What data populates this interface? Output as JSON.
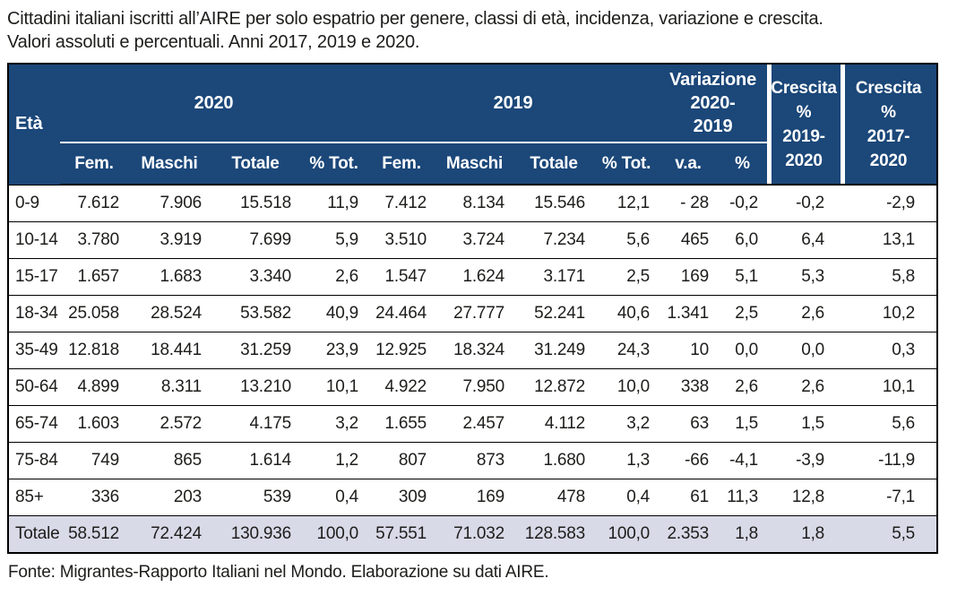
{
  "title": {
    "line1": "Cittadini italiani iscritti all’AIRE per solo espatrio per genere, classi di età, incidenza, variazione e crescita.",
    "line2": "Valori assoluti e percentuali. Anni 2017, 2019 e 2020."
  },
  "colors": {
    "header_bg": "#1b4779",
    "header_text": "#ffffff",
    "totale_row_bg": "#d9dae8",
    "border": "#000000"
  },
  "table": {
    "eta_header": "Età",
    "groups": {
      "y2020": "2020",
      "y2019": "2019",
      "variazione": "Variazione\n2020-\n2019"
    },
    "crescita_headers": {
      "c2019_2020": "Crescita\n%\n2019-\n2020",
      "c2017_2020": "Crescita\n%\n2017-\n2020"
    },
    "sub_headers": [
      "Fem.",
      "Maschi",
      "Totale",
      "% Tot.",
      "Fem.",
      "Maschi",
      "Totale",
      "% Tot.",
      "v.a.",
      "%"
    ],
    "rows": [
      {
        "label": "0-9",
        "values": [
          "7.612",
          "7.906",
          "15.518",
          "11,9",
          "7.412",
          "8.134",
          "15.546",
          "12,1",
          "- 28",
          "-0,2",
          "-0,2",
          "-2,9"
        ]
      },
      {
        "label": "10-14",
        "values": [
          "3.780",
          "3.919",
          "7.699",
          "5,9",
          "3.510",
          "3.724",
          "7.234",
          "5,6",
          "465",
          "6,0",
          "6,4",
          "13,1"
        ]
      },
      {
        "label": "15-17",
        "values": [
          "1.657",
          "1.683",
          "3.340",
          "2,6",
          "1.547",
          "1.624",
          "3.171",
          "2,5",
          "169",
          "5,1",
          "5,3",
          "5,8"
        ]
      },
      {
        "label": "18-34",
        "values": [
          "25.058",
          "28.524",
          "53.582",
          "40,9",
          "24.464",
          "27.777",
          "52.241",
          "40,6",
          "1.341",
          "2,5",
          "2,6",
          "10,2"
        ]
      },
      {
        "label": "35-49",
        "values": [
          "12.818",
          "18.441",
          "31.259",
          "23,9",
          "12.925",
          "18.324",
          "31.249",
          "24,3",
          "10",
          "0,0",
          "0,0",
          "0,3"
        ]
      },
      {
        "label": "50-64",
        "values": [
          "4.899",
          "8.311",
          "13.210",
          "10,1",
          "4.922",
          "7.950",
          "12.872",
          "10,0",
          "338",
          "2,6",
          "2,6",
          "10,1"
        ]
      },
      {
        "label": "65-74",
        "values": [
          "1.603",
          "2.572",
          "4.175",
          "3,2",
          "1.655",
          "2.457",
          "4.112",
          "3,2",
          "63",
          "1,5",
          "1,5",
          "5,6"
        ]
      },
      {
        "label": "75-84",
        "values": [
          "749",
          "865",
          "1.614",
          "1,2",
          "807",
          "873",
          "1.680",
          "1,3",
          "-66",
          "-4,1",
          "-3,9",
          "-11,9"
        ]
      },
      {
        "label": "85+",
        "values": [
          "336",
          "203",
          "539",
          "0,4",
          "309",
          "169",
          "478",
          "0,4",
          "61",
          "11,3",
          "12,8",
          "-7,1"
        ]
      },
      {
        "label": "Totale",
        "values": [
          "58.512",
          "72.424",
          "130.936",
          "100,0",
          "57.551",
          "71.032",
          "128.583",
          "100,0",
          "2.353",
          "1,8",
          "1,8",
          "5,5"
        ]
      }
    ]
  },
  "fonte": "Fonte: Migrantes-Rapporto Italiani nel Mondo. Elaborazione su dati AIRE."
}
